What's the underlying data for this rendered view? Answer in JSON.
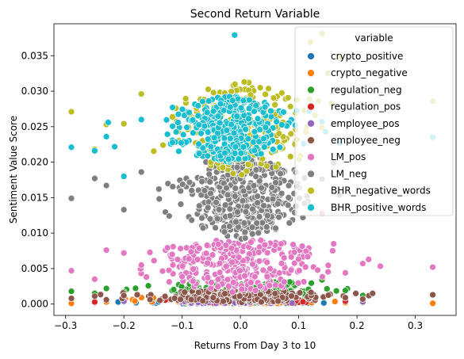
{
  "chart_data": {
    "type": "scatter",
    "title": "Second Return Variable",
    "xlabel": "Returns From Day 3 to 10",
    "ylabel": "Sentiment Value Score",
    "xlim": [
      -0.32,
      0.37
    ],
    "ylim": [
      -0.0016,
      0.0395
    ],
    "xticks": [
      -0.3,
      -0.2,
      -0.1,
      0.0,
      0.1,
      0.2,
      0.3
    ],
    "xtick_labels": [
      "−0.3",
      "−0.2",
      "−0.1",
      "0.0",
      "0.1",
      "0.2",
      "0.3"
    ],
    "yticks": [
      0.0,
      0.005,
      0.01,
      0.015,
      0.02,
      0.025,
      0.03,
      0.035
    ],
    "ytick_labels": [
      "0.000",
      "0.005",
      "0.010",
      "0.015",
      "0.020",
      "0.025",
      "0.030",
      "0.035"
    ],
    "grid": false,
    "legend": {
      "title": "variable",
      "placement": "top-right"
    },
    "series": [
      {
        "name": "crypto_positive",
        "color": "#1f77b4",
        "cluster": {
          "x_mean": 0.0,
          "x_sd": 0.06,
          "y_min": 0.0,
          "y_max": 0.0004
        },
        "outliers": [
          [
            -0.29,
            0.0002
          ],
          [
            -0.25,
            0.0001
          ],
          [
            -0.2,
            0.0003
          ],
          [
            0.21,
            0.0002
          ],
          [
            0.33,
            0.0001
          ]
        ]
      },
      {
        "name": "crypto_negative",
        "color": "#ff7f0e",
        "cluster": {
          "x_mean": 0.0,
          "x_sd": 0.07,
          "y_min": 0.0,
          "y_max": 0.0012
        },
        "outliers": [
          [
            -0.29,
            0.0001
          ],
          [
            -0.25,
            0.0002
          ],
          [
            -0.23,
            0.0003
          ],
          [
            0.18,
            0.0002
          ],
          [
            0.33,
            0.0001
          ]
        ]
      },
      {
        "name": "regulation_neg",
        "color": "#2ca02c",
        "cluster": {
          "x_mean": 0.0,
          "x_sd": 0.075,
          "y_min": 0.0,
          "y_max": 0.0035
        },
        "outliers": [
          [
            -0.29,
            0.0018
          ],
          [
            -0.25,
            0.0015
          ],
          [
            -0.23,
            0.0022
          ],
          [
            -0.2,
            0.0017
          ],
          [
            0.14,
            0.0034
          ],
          [
            0.18,
            0.0019
          ],
          [
            0.21,
            0.0012
          ]
        ]
      },
      {
        "name": "regulation_pos",
        "color": "#d62728",
        "cluster": {
          "x_mean": 0.0,
          "x_sd": 0.06,
          "y_min": 0.0,
          "y_max": 0.0008
        },
        "outliers": [
          [
            -0.25,
            0.0003
          ],
          [
            0.18,
            0.0004
          ]
        ]
      },
      {
        "name": "employee_pos",
        "color": "#9467bd",
        "cluster": {
          "x_mean": 0.0,
          "x_sd": 0.06,
          "y_min": 0.0,
          "y_max": 0.0009
        },
        "outliers": [
          [
            -0.2,
            0.0004
          ],
          [
            0.21,
            0.0003
          ]
        ]
      },
      {
        "name": "employee_neg",
        "color": "#8c564b",
        "cluster": {
          "x_mean": 0.0,
          "x_sd": 0.075,
          "y_min": 0.0002,
          "y_max": 0.002
        },
        "outliers": [
          [
            -0.29,
            0.0008
          ],
          [
            -0.25,
            0.0011
          ],
          [
            -0.23,
            0.0006
          ],
          [
            -0.2,
            0.0012
          ],
          [
            0.18,
            0.0009
          ],
          [
            0.21,
            0.0007
          ],
          [
            0.33,
            0.0013
          ]
        ]
      },
      {
        "name": "LM_pos",
        "color": "#e377c2",
        "cluster": {
          "x_mean": 0.0,
          "x_sd": 0.065,
          "y_min": 0.0015,
          "y_max": 0.0095
        },
        "outliers": [
          [
            -0.29,
            0.0047
          ],
          [
            -0.25,
            0.0035
          ],
          [
            -0.23,
            0.0076
          ],
          [
            -0.2,
            0.0072
          ],
          [
            -0.17,
            0.0055
          ],
          [
            0.14,
            0.0128
          ],
          [
            0.16,
            0.0085
          ],
          [
            0.18,
            0.0044
          ],
          [
            0.21,
            0.0057
          ],
          [
            0.22,
            0.0063
          ],
          [
            0.33,
            0.0052
          ]
        ]
      },
      {
        "name": "LM_neg",
        "color": "#7f7f7f",
        "cluster": {
          "x_mean": 0.0,
          "x_sd": 0.045,
          "y_min": 0.009,
          "y_max": 0.0215
        },
        "outliers": [
          [
            -0.29,
            0.0149
          ],
          [
            -0.25,
            0.0177
          ],
          [
            -0.23,
            0.0167
          ],
          [
            -0.2,
            0.0133
          ],
          [
            -0.17,
            0.0186
          ],
          [
            -0.14,
            0.0162
          ],
          [
            0.11,
            0.0142
          ],
          [
            0.14,
            0.0176
          ],
          [
            0.16,
            0.0199
          ],
          [
            0.17,
            0.0154
          ]
        ]
      },
      {
        "name": "BHR_negative_words",
        "color": "#bcbd22",
        "cluster": {
          "x_mean": 0.0,
          "x_sd": 0.06,
          "y_min": 0.018,
          "y_max": 0.0315
        },
        "outliers": [
          [
            -0.29,
            0.0271
          ],
          [
            -0.25,
            0.0218
          ],
          [
            -0.23,
            0.0253
          ],
          [
            -0.2,
            0.0254
          ],
          [
            -0.17,
            0.0296
          ],
          [
            0.12,
            0.0369
          ],
          [
            0.14,
            0.0381
          ],
          [
            0.15,
            0.0325
          ],
          [
            0.17,
            0.0347
          ],
          [
            0.33,
            0.0286
          ]
        ]
      },
      {
        "name": "BHR_positive_words",
        "color": "#17becf",
        "cluster": {
          "x_mean": -0.02,
          "x_sd": 0.05,
          "y_min": 0.02,
          "y_max": 0.0295
        },
        "outliers": [
          [
            -0.29,
            0.0221
          ],
          [
            -0.25,
            0.0216
          ],
          [
            -0.23,
            0.0236
          ],
          [
            -0.2,
            0.018
          ],
          [
            -0.17,
            0.026
          ],
          [
            -0.01,
            0.0379
          ],
          [
            0.14,
            0.0257
          ],
          [
            0.17,
            0.0227
          ],
          [
            0.33,
            0.0235
          ]
        ]
      }
    ]
  }
}
